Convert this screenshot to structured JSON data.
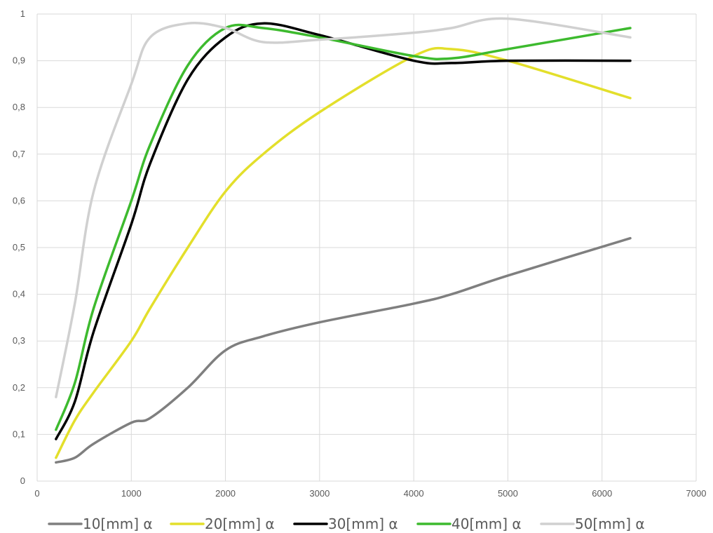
{
  "chart_data": {
    "type": "line",
    "title": "",
    "xlabel": "",
    "ylabel": "",
    "xlim": [
      0,
      7000
    ],
    "ylim": [
      0,
      1
    ],
    "x_ticks": [
      0,
      1000,
      2000,
      3000,
      4000,
      5000,
      6000,
      7000
    ],
    "x_tick_labels": [
      "0",
      "1000",
      "2000",
      "3000",
      "4000",
      "5000",
      "6000",
      "7000"
    ],
    "y_ticks": [
      0,
      0.1,
      0.2,
      0.3,
      0.4,
      0.5,
      0.6,
      0.7,
      0.8,
      0.9,
      1
    ],
    "y_tick_labels": [
      "0",
      "0,1",
      "0,2",
      "0,3",
      "0,4",
      "0,5",
      "0,6",
      "0,7",
      "0,8",
      "0,9",
      "1"
    ],
    "grid": true,
    "legend_position": "bottom",
    "x": [
      200,
      400,
      600,
      1000,
      1200,
      1600,
      2000,
      2400,
      3000,
      4000,
      4400,
      5000,
      6300
    ],
    "series": [
      {
        "name": "10[mm] α",
        "color": "#7f7f7f",
        "values": [
          0.04,
          0.05,
          0.08,
          0.125,
          0.135,
          0.2,
          0.28,
          0.31,
          0.34,
          0.38,
          0.4,
          0.44,
          0.52
        ]
      },
      {
        "name": "20[mm] α",
        "color": "#e3df2b",
        "values": [
          0.05,
          0.13,
          0.19,
          0.3,
          0.37,
          0.5,
          0.62,
          0.7,
          0.79,
          0.91,
          0.925,
          0.9,
          0.82
        ]
      },
      {
        "name": "30[mm] α",
        "color": "#000000",
        "values": [
          0.09,
          0.17,
          0.32,
          0.55,
          0.68,
          0.86,
          0.95,
          0.98,
          0.955,
          0.9,
          0.895,
          0.9,
          0.9
        ]
      },
      {
        "name": "40[mm] α",
        "color": "#3dba2e",
        "values": [
          0.11,
          0.21,
          0.37,
          0.6,
          0.72,
          0.89,
          0.97,
          0.97,
          0.95,
          0.91,
          0.905,
          0.925,
          0.97
        ]
      },
      {
        "name": "50[mm] α",
        "color": "#d0d0d0",
        "values": [
          0.18,
          0.38,
          0.62,
          0.85,
          0.95,
          0.98,
          0.97,
          0.94,
          0.945,
          0.96,
          0.97,
          0.99,
          0.95
        ]
      }
    ]
  }
}
